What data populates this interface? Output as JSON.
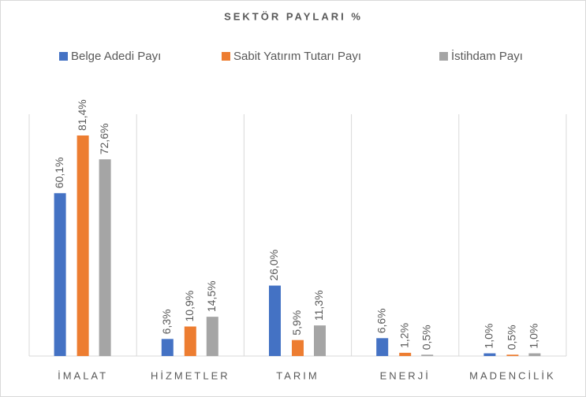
{
  "chart_data": {
    "type": "bar",
    "title": "SEKTÖR PAYLARI %",
    "categories": [
      "İMALAT",
      "HİZMETLER",
      "TARIM",
      "ENERJİ",
      "MADENCİLİK"
    ],
    "series": [
      {
        "name": "Belge Adedi Payı",
        "color": "#4472c4",
        "values": [
          60.1,
          6.3,
          26.0,
          6.6,
          1.0
        ],
        "value_labels": [
          "60,1%",
          "6,3%",
          "26,0%",
          "6,6%",
          "1,0%"
        ]
      },
      {
        "name": "Sabit Yatırım Tutarı Payı",
        "color": "#ed7d31",
        "values": [
          81.4,
          10.9,
          5.9,
          1.2,
          0.5
        ],
        "value_labels": [
          "81,4%",
          "10,9%",
          "5,9%",
          "1,2%",
          "0,5%"
        ]
      },
      {
        "name": "İstihdam Payı",
        "color": "#a5a5a5",
        "values": [
          72.6,
          14.5,
          11.3,
          0.5,
          1.0
        ],
        "value_labels": [
          "72,6%",
          "14,5%",
          "11,3%",
          "0,5%",
          "1,0%"
        ]
      }
    ],
    "legend": "top"
  }
}
